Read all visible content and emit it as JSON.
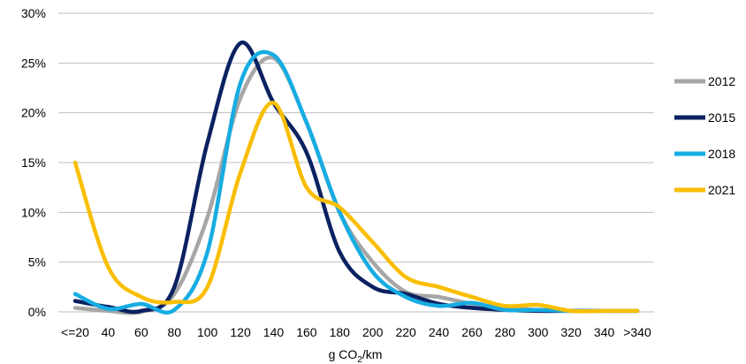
{
  "chart_data": {
    "type": "line",
    "title": "",
    "xlabel_parts": {
      "pre": "g CO",
      "sub": "2",
      "post": "/km"
    },
    "ylabel": "",
    "ylim": [
      0,
      30
    ],
    "y_ticks": [
      "0%",
      "5%",
      "10%",
      "15%",
      "20%",
      "25%",
      "30%"
    ],
    "y_tick_values": [
      0,
      5,
      10,
      15,
      20,
      25,
      30
    ],
    "categories": [
      "<=20",
      "40",
      "60",
      "80",
      "100",
      "120",
      "140",
      "160",
      "180",
      "200",
      "220",
      "240",
      "260",
      "280",
      "300",
      "320",
      "340",
      ">340"
    ],
    "grid": "horizontal",
    "legend_position": "right",
    "series": [
      {
        "name": "2012",
        "color": "#a6a6a6",
        "values": [
          0.4,
          0.1,
          0.0,
          1.8,
          9.5,
          21.5,
          25.5,
          19.0,
          10.0,
          5.0,
          2.0,
          1.5,
          0.8,
          0.4,
          0.2,
          0.1,
          0.1,
          0.1
        ]
      },
      {
        "name": "2015",
        "color": "#0b2161",
        "values": [
          1.1,
          0.5,
          0.1,
          2.5,
          17.0,
          27.0,
          21.0,
          16.0,
          6.0,
          2.5,
          1.8,
          0.8,
          0.4,
          0.2,
          0.1,
          0.1,
          0.1,
          0.1
        ]
      },
      {
        "name": "2018",
        "color": "#16ace2",
        "values": [
          1.8,
          0.3,
          0.8,
          0.2,
          6.0,
          23.0,
          25.8,
          19.0,
          10.0,
          4.0,
          1.5,
          0.6,
          0.9,
          0.2,
          0.2,
          0.1,
          0.1,
          0.1
        ]
      },
      {
        "name": "2021",
        "color": "#f9be00",
        "values": [
          15.0,
          4.5,
          1.5,
          1.0,
          2.5,
          14.0,
          21.0,
          12.5,
          10.5,
          7.0,
          3.5,
          2.5,
          1.5,
          0.6,
          0.7,
          0.1,
          0.1,
          0.1
        ]
      }
    ]
  }
}
